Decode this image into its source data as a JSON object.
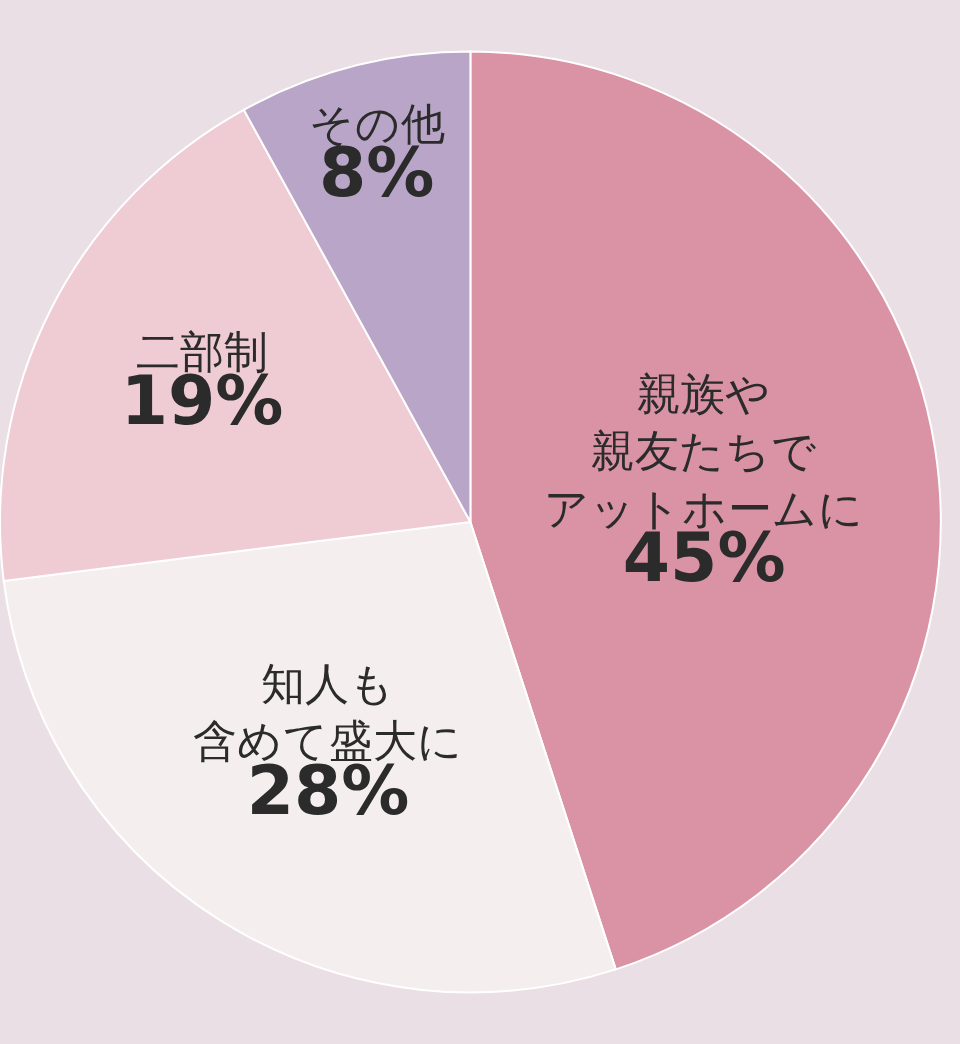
{
  "chart_data": {
    "type": "pie",
    "categories": [
      "親族や親友たちでアットホームに",
      "知人も含めて盛大に",
      "二部制",
      "その他"
    ],
    "values": [
      45,
      28,
      19,
      8
    ],
    "colors": [
      "#d993a5",
      "#f4eeef",
      "#efcbd4",
      "#b8a5c8"
    ],
    "value_labels": [
      "45%",
      "28%",
      "19%",
      "8%"
    ]
  }
}
